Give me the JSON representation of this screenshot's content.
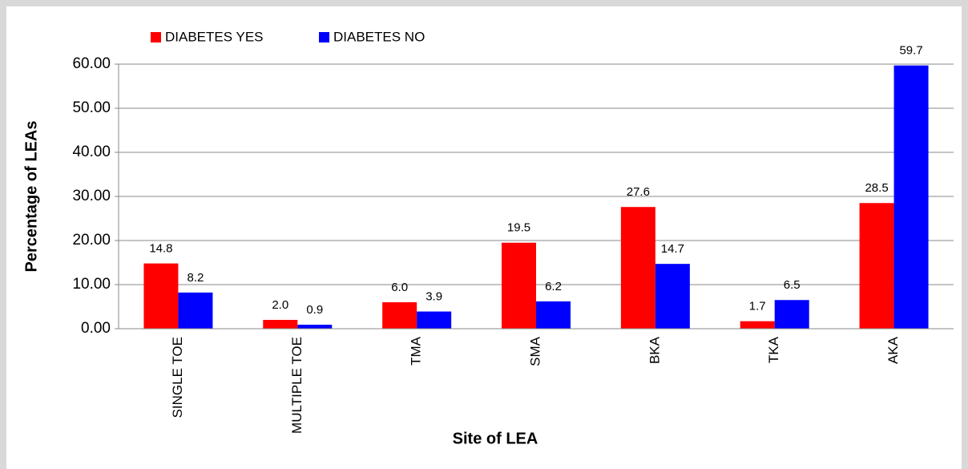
{
  "chart_data": {
    "type": "bar",
    "categories": [
      "SINGLE TOE",
      "MULTIPLE TOE",
      "TMA",
      "SMA",
      "BKA",
      "TKA",
      "AKA"
    ],
    "series": [
      {
        "name": "DIABETES YES",
        "color": "#ff0000",
        "values": [
          14.8,
          2.0,
          6.0,
          19.5,
          27.6,
          1.7,
          28.5
        ],
        "value_labels": [
          "14.8",
          "2.0",
          "6.0",
          "19.5",
          "27.6",
          "1.7",
          "28.5"
        ]
      },
      {
        "name": "DIABETES NO",
        "color": "#0000ff",
        "values": [
          8.2,
          0.9,
          3.9,
          6.2,
          14.7,
          6.5,
          59.7
        ],
        "value_labels": [
          "8.2",
          "0.9",
          "3.9",
          "6.2",
          "14.7",
          "6.5",
          "59.7"
        ]
      }
    ],
    "x_label": "Site of LEA",
    "y_label": "Percentage of LEAs",
    "ylim": [
      0,
      60
    ],
    "yticks": [
      {
        "value": 0,
        "label": "0.00"
      },
      {
        "value": 10,
        "label": "10.00"
      },
      {
        "value": 20,
        "label": "20.00"
      },
      {
        "value": 30,
        "label": "30.00"
      },
      {
        "value": 40,
        "label": "40.00"
      },
      {
        "value": 50,
        "label": "50.00"
      },
      {
        "value": 60,
        "label": "60.00"
      }
    ],
    "grid": true,
    "legend": "top"
  }
}
